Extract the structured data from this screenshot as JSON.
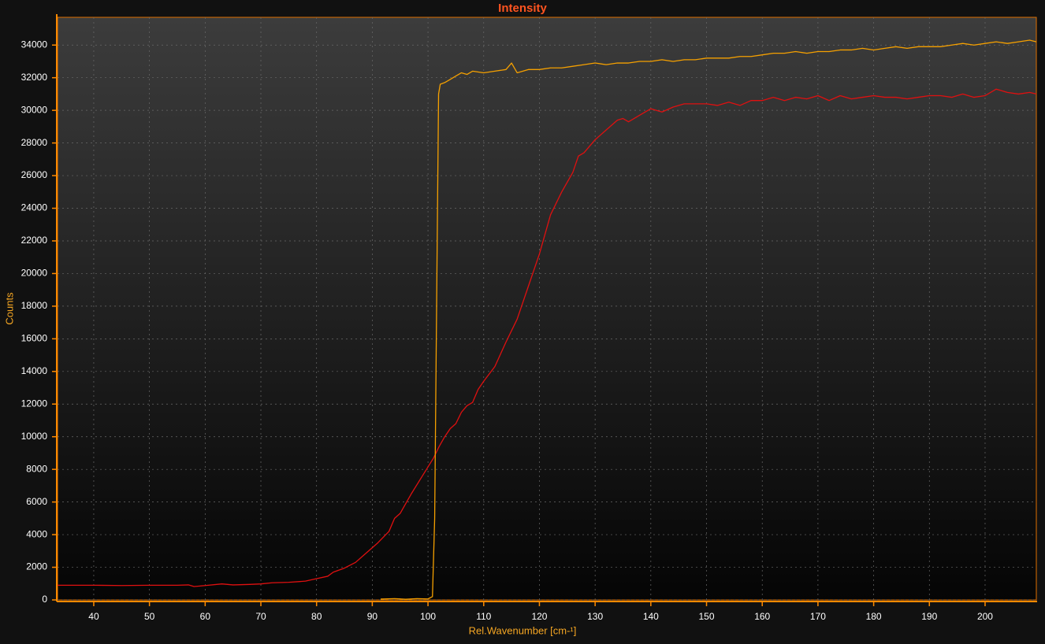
{
  "chart_data": {
    "type": "line",
    "title": "Intensity",
    "x_label": "Rel.Wavenumber [cm-¹]",
    "y_label": "Counts",
    "xlim": [
      33.5,
      209.2
    ],
    "ylim": [
      0,
      35700
    ],
    "xticks": [
      40,
      50,
      60,
      70,
      80,
      90,
      100,
      110,
      120,
      130,
      140,
      150,
      160,
      170,
      180,
      190,
      200
    ],
    "yticks": [
      0,
      2000,
      4000,
      6000,
      8000,
      10000,
      12000,
      14000,
      16000,
      18000,
      20000,
      22000,
      24000,
      26000,
      28000,
      30000,
      32000,
      34000
    ],
    "grid": true,
    "series": [
      {
        "color": "#e01010",
        "x": [
          33.5,
          40,
          45,
          50,
          55,
          57,
          58,
          60,
          63,
          65,
          68,
          70,
          72,
          75,
          78,
          80,
          82,
          83,
          85,
          87,
          89,
          91,
          93,
          94,
          95,
          97,
          99,
          101,
          102,
          103,
          104,
          105,
          106,
          107,
          108,
          109,
          110,
          112,
          114,
          116,
          118,
          120,
          122,
          124,
          126,
          127,
          128,
          130,
          132,
          134,
          135,
          136,
          138,
          140,
          142,
          144,
          146,
          148,
          150,
          152,
          154,
          156,
          158,
          160,
          162,
          164,
          166,
          168,
          170,
          172,
          174,
          176,
          178,
          180,
          182,
          184,
          186,
          188,
          190,
          192,
          194,
          196,
          198,
          200,
          202,
          204,
          206,
          208,
          209.2
        ],
        "values": [
          900,
          900,
          880,
          900,
          900,
          920,
          820,
          880,
          980,
          920,
          950,
          980,
          1050,
          1080,
          1150,
          1300,
          1450,
          1700,
          1950,
          2300,
          2900,
          3500,
          4200,
          5000,
          5300,
          6500,
          7600,
          8700,
          9400,
          10000,
          10500,
          10800,
          11500,
          11900,
          12100,
          12900,
          13400,
          14300,
          15800,
          17200,
          19200,
          21200,
          23600,
          25000,
          26200,
          27200,
          27400,
          28200,
          28800,
          29400,
          29500,
          29300,
          29700,
          30100,
          29900,
          30200,
          30400,
          30400,
          30400,
          30300,
          30500,
          30300,
          30600,
          30600,
          30800,
          30600,
          30800,
          30700,
          30900,
          30600,
          30900,
          30700,
          30800,
          30900,
          30800,
          30800,
          30700,
          30800,
          30900,
          30900,
          30800,
          31000,
          30800,
          30900,
          31300,
          31100,
          31000,
          31100,
          31000
        ]
      },
      {
        "color": "#f5a000",
        "x": [
          91.5,
          94,
          96,
          98,
          100,
          100.8,
          101.2,
          101.6,
          101.9,
          102.2,
          103,
          104,
          105,
          106,
          107,
          108,
          110,
          112,
          114,
          115,
          116,
          118,
          120,
          122,
          124,
          126,
          128,
          130,
          132,
          134,
          136,
          138,
          140,
          142,
          144,
          146,
          148,
          150,
          152,
          154,
          156,
          158,
          160,
          162,
          164,
          166,
          168,
          170,
          172,
          174,
          176,
          178,
          180,
          182,
          184,
          186,
          188,
          190,
          192,
          194,
          196,
          198,
          200,
          202,
          204,
          206,
          208,
          209.2
        ],
        "values": [
          50,
          80,
          40,
          80,
          60,
          200,
          5000,
          20000,
          31000,
          31600,
          31700,
          31900,
          32100,
          32300,
          32200,
          32400,
          32300,
          32400,
          32500,
          32900,
          32300,
          32500,
          32500,
          32600,
          32600,
          32700,
          32800,
          32900,
          32800,
          32900,
          32900,
          33000,
          33000,
          33100,
          33000,
          33100,
          33100,
          33200,
          33200,
          33200,
          33300,
          33300,
          33400,
          33500,
          33500,
          33600,
          33500,
          33600,
          33600,
          33700,
          33700,
          33800,
          33700,
          33800,
          33900,
          33800,
          33900,
          33900,
          33900,
          34000,
          34100,
          34000,
          34100,
          34200,
          34100,
          34200,
          34300,
          34200
        ]
      }
    ]
  }
}
